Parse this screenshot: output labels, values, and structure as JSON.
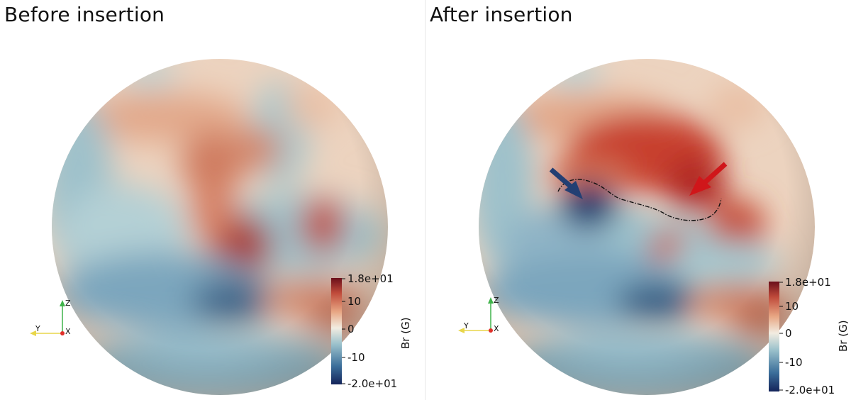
{
  "panels": [
    {
      "id": "before",
      "title": "Before insertion",
      "colorbar": {
        "label": "Br (G)",
        "ticks": [
          "1.8e+01",
          "10",
          "0",
          "-10",
          "-2.0e+01"
        ]
      },
      "axes": {
        "z": "Z",
        "y": "Y",
        "x": "X"
      }
    },
    {
      "id": "after",
      "title": "After insertion",
      "colorbar": {
        "label": "Br (G)",
        "ticks": [
          "1.8e+01",
          "10",
          "0",
          "-10",
          "-2.0e+01"
        ]
      },
      "axes": {
        "z": "Z",
        "y": "Y",
        "x": "X"
      }
    }
  ],
  "colorscale": {
    "min": -20,
    "max": 18,
    "stops": [
      "#14245a",
      "#3b6e9a",
      "#9cc2cc",
      "#f2ece1",
      "#e8a885",
      "#bf4a3a",
      "#6b0f1a"
    ]
  },
  "arrows": {
    "negative_color": "#233f73",
    "positive_color": "#d0161a"
  }
}
